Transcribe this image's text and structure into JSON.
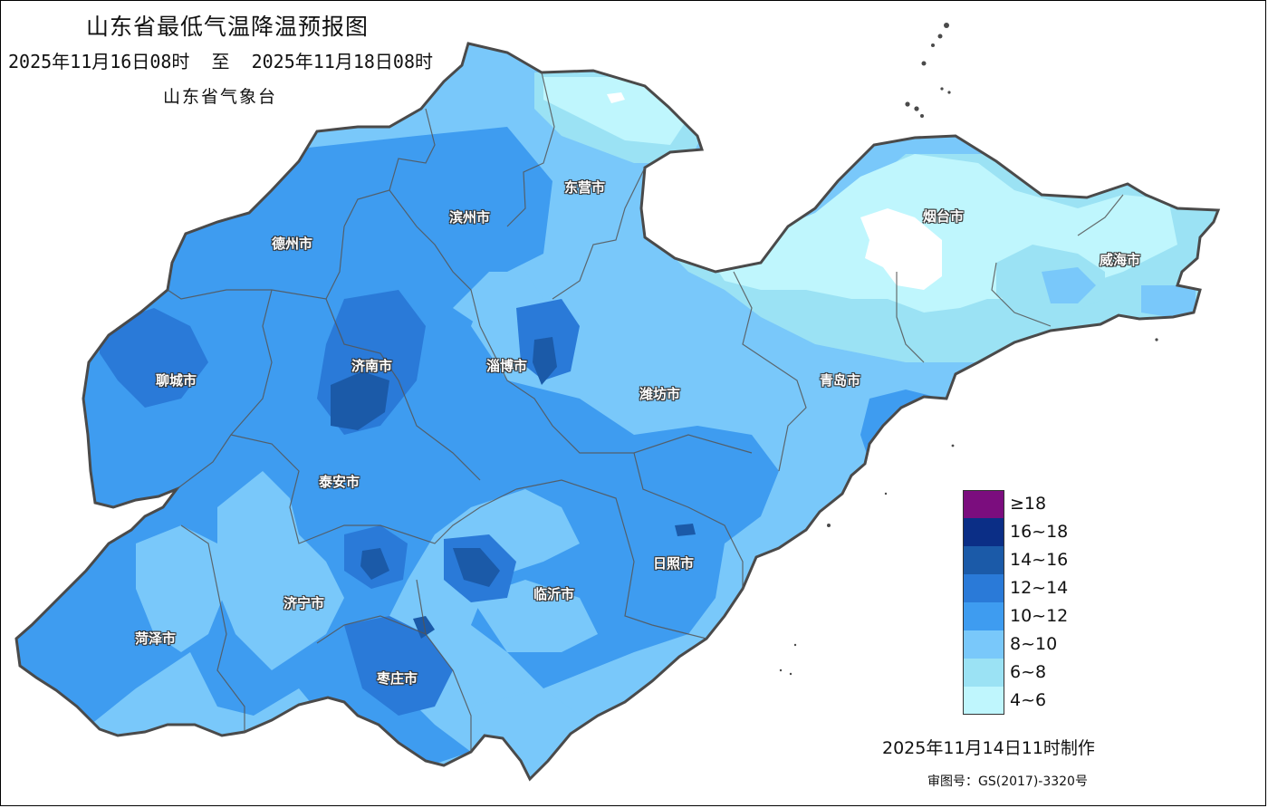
{
  "header": {
    "title": "山东省最低气温降温预报图",
    "period": "2025年11月16日08时  至  2025年11月18日08时",
    "agency": "山东省气象台"
  },
  "cities": [
    {
      "name": "东营市"
    },
    {
      "name": "滨州市"
    },
    {
      "name": "德州市"
    },
    {
      "name": "烟台市"
    },
    {
      "name": "威海市"
    },
    {
      "name": "聊城市"
    },
    {
      "name": "济南市"
    },
    {
      "name": "淄博市"
    },
    {
      "name": "潍坊市"
    },
    {
      "name": "青岛市"
    },
    {
      "name": "泰安市"
    },
    {
      "name": "日照市"
    },
    {
      "name": "济宁市"
    },
    {
      "name": "临沂市"
    },
    {
      "name": "菏泽市"
    },
    {
      "name": "枣庄市"
    }
  ],
  "legend": {
    "items": [
      {
        "label": "≥18",
        "color": "#7b0d7e"
      },
      {
        "label": "16~18",
        "color": "#0b2e86"
      },
      {
        "label": "14~16",
        "color": "#1b5aa8"
      },
      {
        "label": "12~14",
        "color": "#2a7ad8"
      },
      {
        "label": "10~12",
        "color": "#3e9cf0"
      },
      {
        "label": "8~10",
        "color": "#79c8fa"
      },
      {
        "label": "6~8",
        "color": "#9be2f4"
      },
      {
        "label": "4~6",
        "color": "#bff6fd"
      }
    ]
  },
  "footer": {
    "made": "2025年11月14日11时制作",
    "approval": "审图号：GS(2017)-3320号"
  },
  "colors": {
    "border": "#4a4a4a",
    "band_4_6": "#bff6fd",
    "band_6_8": "#9be2f4",
    "band_8_10": "#79c8fa",
    "band_10_12": "#3e9cf0",
    "band_12_14": "#2a7ad8",
    "band_14_16": "#1b5aa8"
  }
}
